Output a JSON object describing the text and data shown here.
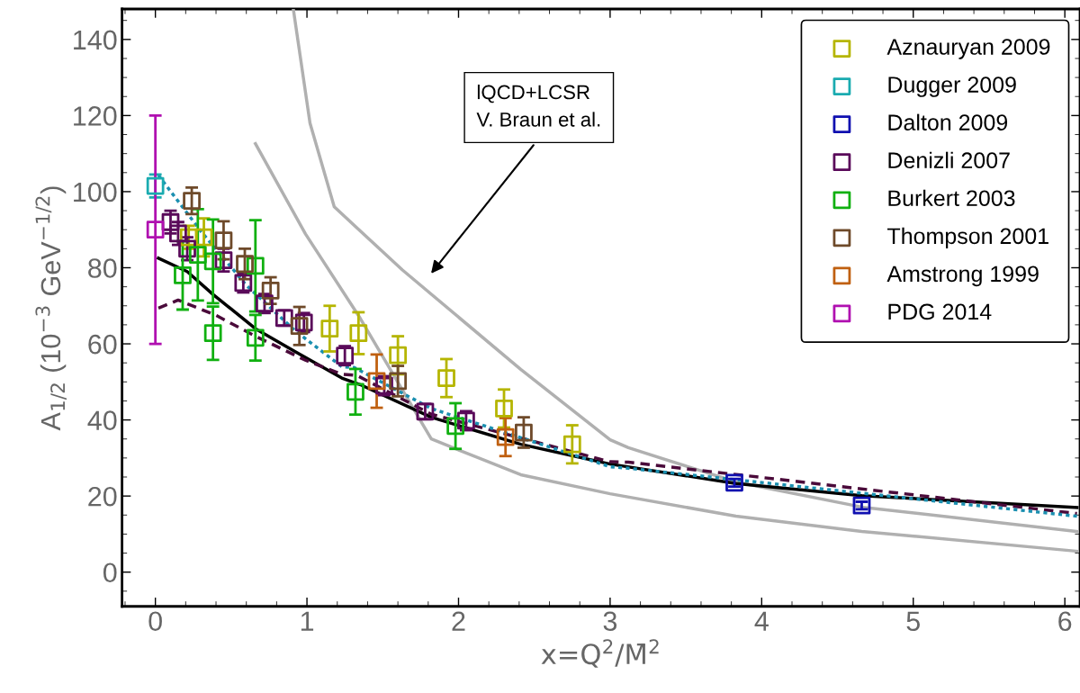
{
  "chart_data": {
    "type": "scatter",
    "xlabel": "x=Q$^{2}$/M̄$^{2}$",
    "ylabel": "A$_{1/2}$ (10$^{−3}$ GeV$^{−1/2}$)",
    "xlim": [
      -0.22,
      6.1
    ],
    "ylim": [
      -9,
      148
    ],
    "xticks": [
      0,
      1,
      2,
      3,
      4,
      5,
      6
    ],
    "yticks": [
      0,
      20,
      40,
      60,
      80,
      100,
      120,
      140
    ],
    "grid": false,
    "legend": "top right",
    "annotations": [
      "lQCD+LCSR\nV. Braun et al."
    ],
    "series": [
      {
        "name": "Aznauryan 2009",
        "marker": "square",
        "color": "#b5b500",
        "x": [
          0.22,
          0.32,
          1.15,
          1.34,
          1.6,
          1.92,
          2.3,
          2.75
        ],
        "values": [
          88,
          88,
          64,
          62.8,
          57,
          51,
          43,
          33.6
        ],
        "errors": [
          3,
          5,
          6,
          5.5,
          5,
          5,
          5,
          5
        ]
      },
      {
        "name": "Dugger 2009",
        "marker": "square",
        "color": "#1aabb0",
        "x": [
          0
        ],
        "values": [
          101.5
        ],
        "errors": [
          3
        ]
      },
      {
        "name": "Dalton 2009",
        "marker": "square",
        "color": "#1010b0",
        "x": [
          3.82,
          4.66
        ],
        "values": [
          23.5,
          17.5
        ],
        "errors": [
          1,
          1
        ]
      },
      {
        "name": "Denizli 2007",
        "marker": "square",
        "color": "#5a0a5a",
        "x": [
          0.1,
          0.15,
          0.21,
          0.45,
          0.58,
          0.72,
          0.85,
          0.98,
          1.25,
          1.51,
          1.78,
          2.05
        ],
        "values": [
          92,
          89,
          85,
          82,
          76,
          70.6,
          66.8,
          65.6,
          56.9,
          49,
          42.2,
          39.8
        ],
        "errors": [
          3,
          3,
          3,
          3,
          2.5,
          2.5,
          2,
          2.5,
          2.5,
          2.5,
          2,
          2.5
        ]
      },
      {
        "name": "Burkert 2003",
        "marker": "square",
        "color": "#10b010",
        "x": [
          0.18,
          0.28,
          0.38,
          0.38,
          0.66,
          0.66,
          1.32,
          1.98
        ],
        "values": [
          78,
          83.4,
          62.8,
          81.7,
          80.5,
          61.6,
          47.4,
          38.4
        ],
        "errors": [
          9,
          12,
          7,
          11,
          12,
          6,
          6,
          6
        ]
      },
      {
        "name": "Thompson 2001",
        "marker": "square",
        "color": "#6e4a2a",
        "x": [
          0.24,
          0.45,
          0.59,
          0.76,
          0.95,
          1.6,
          2.43
        ],
        "values": [
          97.6,
          87.2,
          81,
          74,
          64.7,
          50.2,
          36.7
        ],
        "errors": [
          3.5,
          5,
          4,
          3.5,
          5,
          4,
          4
        ]
      },
      {
        "name": "Amstrong 1999",
        "marker": "square",
        "color": "#c06010",
        "x": [
          1.46,
          2.31
        ],
        "values": [
          50.2,
          35.5
        ],
        "errors": [
          7,
          5
        ]
      },
      {
        "name": "PDG 2014",
        "marker": "square",
        "color": "#b010b0",
        "x": [
          0
        ],
        "values": [
          90
        ],
        "errors": [
          30
        ]
      },
      {
        "type": "line",
        "color": "#b0b0b0",
        "line_style": "solid",
        "x": [
          0.91,
          1.02,
          1.18,
          1.63,
          2.41,
          3.0,
          3.12,
          3.83,
          4.66,
          6.08
        ],
        "values": [
          148,
          118,
          96,
          79.4,
          53.3,
          34.8,
          32.7,
          23.7,
          17.1,
          10.7
        ]
      },
      {
        "type": "line",
        "color": "#b0b0b0",
        "line_style": "solid",
        "x": [
          0.66,
          0.99,
          1.35,
          1.82,
          2.41,
          3.0,
          3.83,
          4.66,
          6.08
        ],
        "values": [
          112.6,
          88.9,
          66.8,
          35,
          25.6,
          20.6,
          14.7,
          10.7,
          5.5
        ]
      },
      {
        "type": "line",
        "color": "#000000",
        "line_style": "solid",
        "x": [
          0.02,
          0.21,
          0.38,
          0.66,
          0.92,
          1.23,
          1.35,
          1.82,
          2.41,
          3.0,
          3.83,
          4.66,
          6.08
        ],
        "values": [
          82.5,
          79,
          73,
          64,
          58,
          51,
          49.3,
          40.7,
          33.6,
          28.4,
          23.3,
          20.1,
          17
        ]
      },
      {
        "type": "line",
        "color": "#4a0a3a",
        "line_style": "dashed",
        "x": [
          0.02,
          0.15,
          0.4,
          0.66,
          0.99,
          1.23,
          1.33,
          1.82,
          3.0,
          3.12,
          6.08
        ],
        "values": [
          69.4,
          71.5,
          67.5,
          62,
          55.7,
          52,
          51.7,
          41.5,
          29,
          28.9,
          15.4
        ]
      },
      {
        "type": "line",
        "color": "#1a8fb0",
        "line_style": "dotted",
        "x": [
          0.02,
          0.3,
          0.6,
          0.92,
          1.23,
          1.31,
          1.82,
          3.0,
          3.12,
          6.08
        ],
        "values": [
          104.3,
          89.6,
          75.4,
          63.5,
          54,
          53.8,
          43,
          27.7,
          27.3,
          14.7
        ]
      }
    ]
  }
}
